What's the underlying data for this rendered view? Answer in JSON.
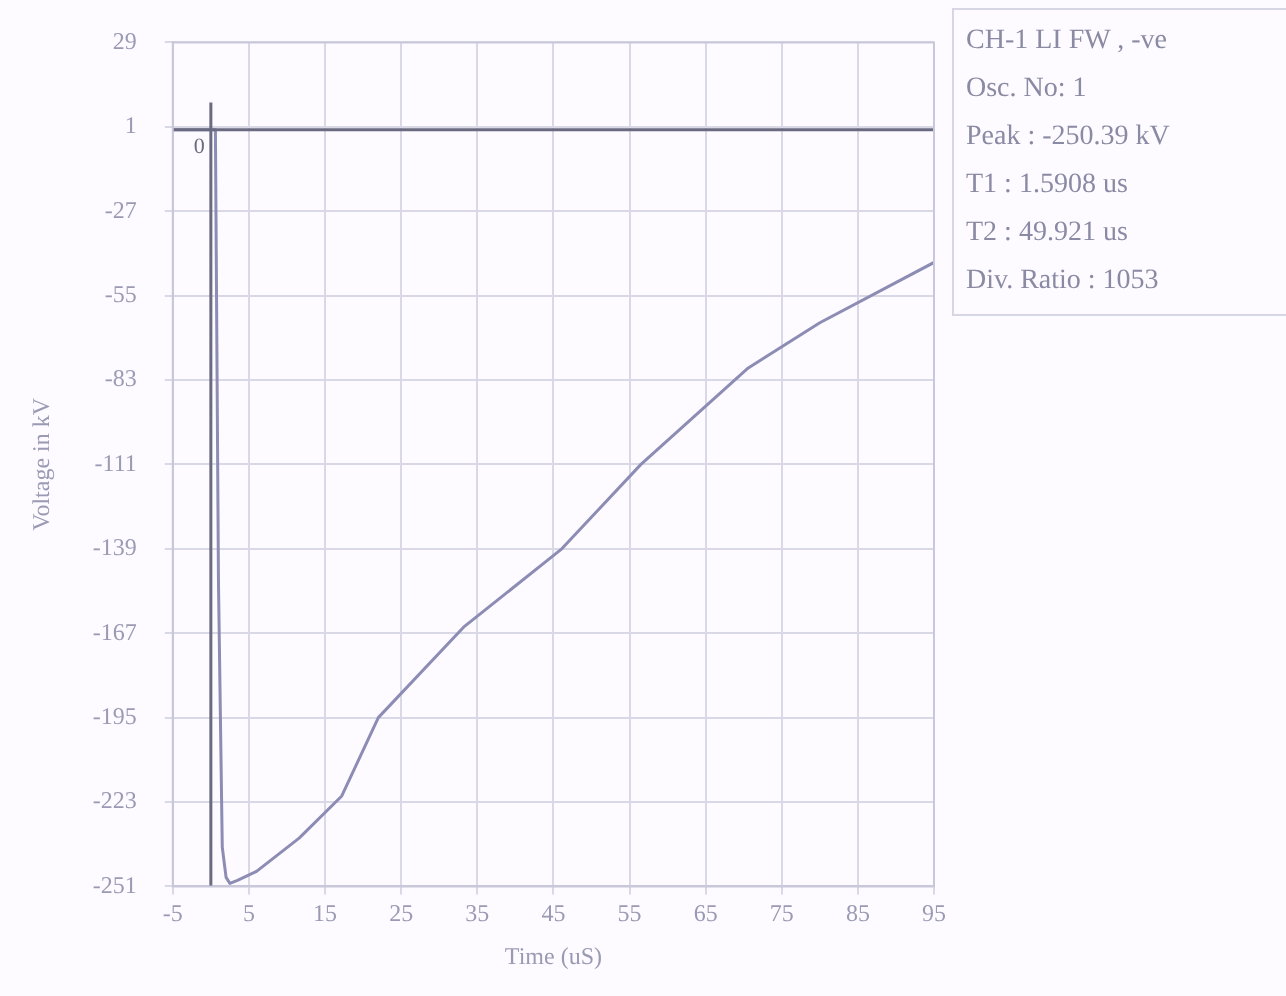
{
  "chart_data": {
    "type": "line",
    "xlabel": "Time (uS)",
    "ylabel": "Voltage in kV",
    "annotations": [
      "CH-1 LI FW , -ve",
      "Osc. No: 1",
      "Peak : -250.39 kV",
      "T1 : 1.5908 us",
      "T2 : 49.921 us",
      "Div. Ratio : 1053"
    ],
    "series": [
      {
        "color": "#8c8cb4",
        "x": [
          -5,
          0,
          0.6,
          1.0,
          1.5,
          2.0,
          2.5,
          3.5,
          6,
          11.6,
          17.2,
          22,
          33.2,
          46.1,
          56.5,
          70.6,
          80,
          95
        ],
        "values": [
          0,
          0,
          0,
          -150,
          -238,
          -248,
          -250,
          -249,
          -246,
          -235,
          -221,
          -195,
          -165,
          -139,
          -111,
          -79,
          -64,
          -44
        ]
      }
    ],
    "xlim": [
      -5,
      95
    ],
    "xticks": [
      -5,
      5,
      15,
      25,
      35,
      45,
      55,
      65,
      75,
      85,
      95
    ],
    "ylim": [
      -251,
      29
    ],
    "yticks": [
      29,
      1,
      -27,
      -55,
      -83,
      -111,
      -139,
      -167,
      -195,
      -223,
      -251
    ],
    "ref_lines": [
      {
        "axis": "y",
        "value": 0,
        "color": "#6a6a80"
      },
      {
        "axis": "x",
        "value": 0,
        "label": "0",
        "color": "#6a6a80"
      }
    ],
    "grid": true,
    "legend": false,
    "marker": "none",
    "line_style": "solid"
  }
}
